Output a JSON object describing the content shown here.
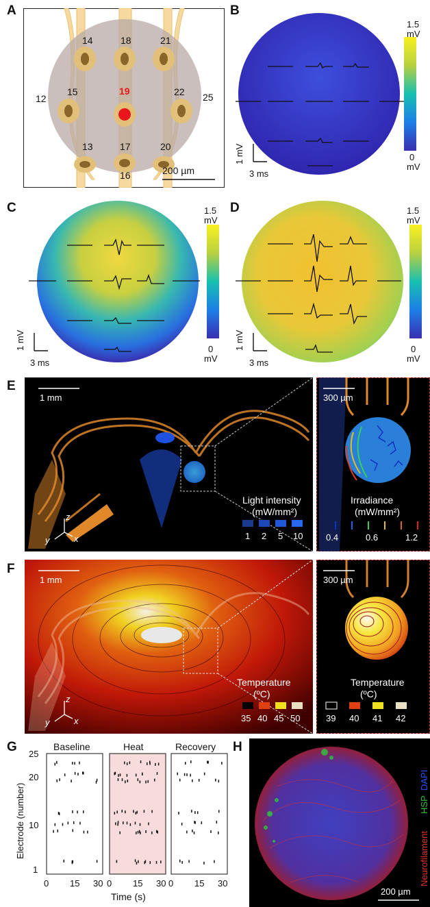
{
  "panels": {
    "A": {
      "label": "A",
      "electrodes": [
        {
          "num": "14"
        },
        {
          "num": "18"
        },
        {
          "num": "21"
        },
        {
          "num": "12"
        },
        {
          "num": "15"
        },
        {
          "num": "19"
        },
        {
          "num": "22"
        },
        {
          "num": "25"
        },
        {
          "num": "13"
        },
        {
          "num": "17"
        },
        {
          "num": "20"
        },
        {
          "num": "16"
        }
      ],
      "scale_bar": "200 µm",
      "highlight_color": "#e8161b"
    },
    "B": {
      "label": "B",
      "cbar_max": "1.5",
      "cbar_min": "0",
      "cbar_unit": "mV",
      "scale_v": "1 mV",
      "scale_t": "3 ms"
    },
    "C": {
      "label": "C",
      "cbar_max": "1.5",
      "cbar_min": "0",
      "cbar_unit": "mV",
      "scale_v": "1 mV",
      "scale_t": "3 ms"
    },
    "D": {
      "label": "D",
      "cbar_max": "1.5",
      "cbar_min": "0",
      "cbar_unit": "mV",
      "scale_v": "1 mV",
      "scale_t": "3 ms"
    },
    "E": {
      "label": "E",
      "scale_main": "1 mm",
      "scale_inset": "300 µm",
      "legend_title": "Light intensity",
      "legend_unit": "(mW/mm²)",
      "legend_values": [
        "1",
        "2",
        "5",
        "10"
      ],
      "inset_title": "Irradiance",
      "inset_unit": "(mW/mm²)",
      "inset_values": [
        "0.4",
        "0.6",
        "1.2"
      ],
      "axes": [
        "z",
        "y",
        "x"
      ]
    },
    "F": {
      "label": "F",
      "scale_main": "1 mm",
      "scale_inset": "300 µm",
      "legend_title": "Temperature",
      "legend_unit": "(ºC)",
      "legend_values": [
        "35",
        "40",
        "45",
        "50"
      ],
      "inset_title": "Temperature",
      "inset_unit": "(ºC)",
      "inset_values": [
        "39",
        "40",
        "41",
        "42"
      ],
      "axes": [
        "z",
        "y",
        "x"
      ]
    },
    "G": {
      "label": "G",
      "titles": [
        "Baseline",
        "Heat",
        "Recovery"
      ],
      "ylabel": "Electrode (number)",
      "yticks": [
        "25",
        "20",
        "10",
        "1"
      ],
      "xticks": [
        "0",
        "15",
        "30"
      ],
      "xlabel": "Time (s)"
    },
    "H": {
      "label": "H",
      "stains": [
        "Neurofilament",
        "HSP",
        "DAPI"
      ],
      "scale_bar": "200 µm"
    }
  },
  "colors": {
    "neurofilament": "#e03030",
    "hsp": "#30c040",
    "dapi": "#3050ff",
    "heat_bg": "#f8dcdc"
  }
}
